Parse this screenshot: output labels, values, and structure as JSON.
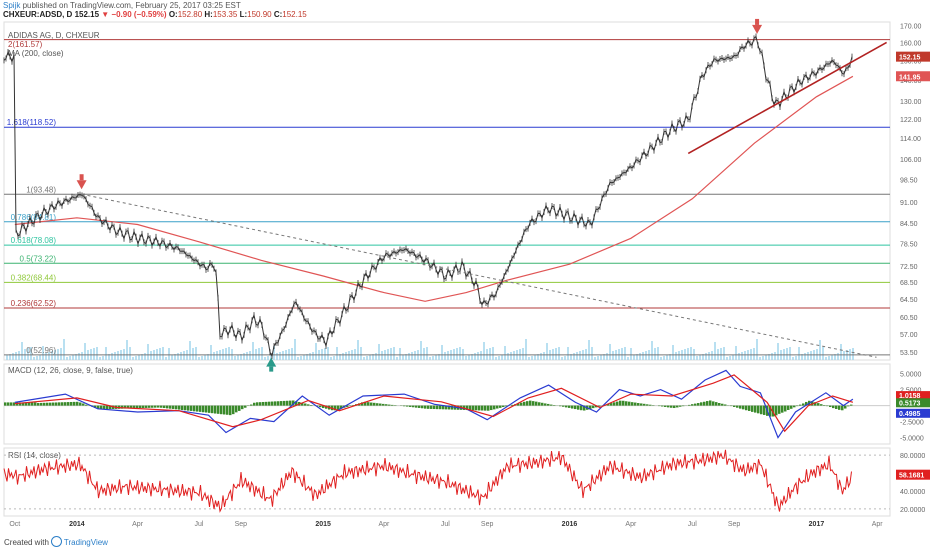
{
  "header": {
    "user": "Spijk",
    "published": " published on TradingView.com, February 25, 2017 03:25 EST",
    "symbol": "CHXEUR:ADSD, D",
    "last": "152.15",
    "change": "▼ −0.90 (−0.59%)",
    "ohlc": {
      "o_label": "O:",
      "o": "152.80",
      "h_label": "H:",
      "h": "153.35",
      "l_label": "L:",
      "l": "150.90",
      "c_label": "C:",
      "c": "152.15"
    }
  },
  "legends": {
    "main_title": "ADIDAS AG, D, CHXEUR",
    "main_sub": "2(161.57)",
    "ma": "MA (200, close)",
    "macd": "MACD (12, 26, close, 9, false, true)",
    "rsi": "RSI (14, close)"
  },
  "footer": {
    "created": "Created with",
    "brand": "TradingView"
  },
  "colors": {
    "candle": "#333333",
    "ma": "#e05555",
    "fib_1618": "#2a3bd1",
    "fib_0": "#777777",
    "fib_1": "#777777",
    "fib_0786": "#3aa0c8",
    "fib_0618": "#2ec4a0",
    "fib_05": "#3cb371",
    "fib_0382": "#8fc83a",
    "fib_0236": "#b03a3a",
    "fib_2": "#b03a3a",
    "trend": "#b22222",
    "arrow_down": "#d9534f",
    "arrow_up": "#2a9a8a",
    "volume": "#a8d8ee",
    "macd_line": "#2a3bd1",
    "signal_line": "#e02020",
    "hist_pos": "#3a8a2a",
    "hist_neg": "#3a8a2a",
    "rsi_line": "#e02020"
  },
  "chart_data": {
    "type": "line",
    "x_ticks": [
      "Oct",
      "2014",
      "Apr",
      "Jul",
      "Sep",
      "2015",
      "Apr",
      "Jul",
      "Sep",
      "2016",
      "Apr",
      "Jul",
      "Sep",
      "2017",
      "Apr"
    ],
    "y_ticks": [
      "170.00",
      "160.00",
      "150.00",
      "140.00",
      "130.00",
      "122.00",
      "114.00",
      "106.00",
      "98.50",
      "91.00",
      "84.50",
      "78.50",
      "72.50",
      "68.50",
      "64.50",
      "60.50",
      "57.00",
      "53.50"
    ],
    "price_labels": {
      "last": "152.15",
      "ma": "141.95"
    },
    "fib_levels": [
      {
        "label": "2(161.57)",
        "value": 161.57,
        "color_key": "fib_2"
      },
      {
        "label": "1.618(118.52)",
        "value": 118.52,
        "color_key": "fib_1618"
      },
      {
        "label": "1(93.48)",
        "value": 93.48,
        "color_key": "fib_1"
      },
      {
        "label": "0.786(84.81)",
        "value": 84.81,
        "color_key": "fib_0786"
      },
      {
        "label": "0.618(78.08)",
        "value": 78.08,
        "color_key": "fib_0618"
      },
      {
        "label": "0.5(73.22)",
        "value": 73.22,
        "color_key": "fib_05"
      },
      {
        "label": "0.382(68.44)",
        "value": 68.44,
        "color_key": "fib_0382"
      },
      {
        "label": "0.236(62.52)",
        "value": 62.52,
        "color_key": "fib_0236"
      },
      {
        "label": "0(52.96)",
        "value": 52.96,
        "color_key": "fib_0"
      }
    ],
    "price_series": [
      [
        "2013-10-01",
        81
      ],
      [
        "2013-11-01",
        86
      ],
      [
        "2013-12-01",
        90
      ],
      [
        "2014-01-08",
        93.5
      ],
      [
        "2014-02-01",
        86
      ],
      [
        "2014-03-01",
        82
      ],
      [
        "2014-04-01",
        80
      ],
      [
        "2014-05-01",
        79
      ],
      [
        "2014-06-01",
        77
      ],
      [
        "2014-07-10",
        72
      ],
      [
        "2014-07-25",
        73
      ],
      [
        "2014-08-01",
        57
      ],
      [
        "2014-08-15",
        58
      ],
      [
        "2014-09-01",
        56.5
      ],
      [
        "2014-09-20",
        60
      ],
      [
        "2014-10-01",
        59
      ],
      [
        "2014-10-16",
        53
      ],
      [
        "2014-11-01",
        57.5
      ],
      [
        "2014-11-20",
        64
      ],
      [
        "2014-12-05",
        60
      ],
      [
        "2014-12-20",
        57
      ],
      [
        "2015-01-05",
        55.5
      ],
      [
        "2015-02-01",
        62
      ],
      [
        "2015-03-01",
        69
      ],
      [
        "2015-04-01",
        75
      ],
      [
        "2015-05-01",
        77
      ],
      [
        "2015-06-01",
        74
      ],
      [
        "2015-07-01",
        70
      ],
      [
        "2015-07-25",
        72.5
      ],
      [
        "2015-08-15",
        68
      ],
      [
        "2015-08-25",
        63
      ],
      [
        "2015-09-15",
        66
      ],
      [
        "2015-10-01",
        72
      ],
      [
        "2015-11-01",
        84
      ],
      [
        "2015-12-01",
        89
      ],
      [
        "2016-01-05",
        86
      ],
      [
        "2016-02-01",
        84
      ],
      [
        "2016-03-01",
        97
      ],
      [
        "2016-04-01",
        103
      ],
      [
        "2016-05-01",
        110
      ],
      [
        "2016-06-01",
        118
      ],
      [
        "2016-06-25",
        122
      ],
      [
        "2016-07-15",
        142
      ],
      [
        "2016-08-01",
        150
      ],
      [
        "2016-09-01",
        152
      ],
      [
        "2016-09-15",
        158
      ],
      [
        "2016-10-05",
        162
      ],
      [
        "2016-10-20",
        140
      ],
      [
        "2016-11-01",
        128
      ],
      [
        "2016-11-20",
        134
      ],
      [
        "2016-12-10",
        140
      ],
      [
        "2017-01-01",
        144
      ],
      [
        "2017-01-25",
        150
      ],
      [
        "2017-02-10",
        143
      ],
      [
        "2017-02-24",
        152.15
      ]
    ],
    "ma_series": [
      [
        "2013-10-01",
        84
      ],
      [
        "2014-01-01",
        86
      ],
      [
        "2014-04-01",
        84
      ],
      [
        "2014-07-01",
        79
      ],
      [
        "2014-10-01",
        74
      ],
      [
        "2015-01-01",
        70
      ],
      [
        "2015-04-01",
        66
      ],
      [
        "2015-06-01",
        64
      ],
      [
        "2015-08-01",
        66
      ],
      [
        "2015-10-01",
        69
      ],
      [
        "2016-01-01",
        73
      ],
      [
        "2016-04-01",
        80
      ],
      [
        "2016-07-01",
        92
      ],
      [
        "2016-10-01",
        112
      ],
      [
        "2017-01-01",
        132
      ],
      [
        "2017-02-24",
        141.95
      ]
    ],
    "trendlines": [
      {
        "from": [
          "2014-01-08",
          93.5
        ],
        "to": [
          "2017-03-31",
          52.5
        ],
        "style": "dashed",
        "color_key": "fib_0"
      },
      {
        "from": [
          "2016-06-25",
          108
        ],
        "to": [
          "2017-04-15",
          160
        ],
        "style": "solid",
        "color_key": "trend"
      }
    ],
    "arrows": [
      {
        "dir": "down",
        "at": [
          "2014-01-08",
          93.5
        ]
      },
      {
        "dir": "down",
        "at": [
          "2016-10-05",
          162
        ]
      },
      {
        "dir": "up",
        "at": [
          "2014-10-16",
          53
        ]
      }
    ],
    "macd": {
      "y_ticks": [
        "5.0000",
        "2.5000",
        "-2.5000",
        "-5.0000"
      ],
      "labels": [
        "1.0158",
        "0.5173",
        "0.4985"
      ],
      "macd_series": [
        [
          "2013-10-01",
          0.5
        ],
        [
          "2013-12-15",
          1.8
        ],
        [
          "2014-02-01",
          -0.5
        ],
        [
          "2014-04-01",
          -1
        ],
        [
          "2014-06-01",
          -0.8
        ],
        [
          "2014-07-15",
          -1.5
        ],
        [
          "2014-08-10",
          -4.2
        ],
        [
          "2014-09-15",
          -2
        ],
        [
          "2014-10-20",
          -2.5
        ],
        [
          "2014-12-01",
          1.5
        ],
        [
          "2015-01-10",
          -1.5
        ],
        [
          "2015-03-01",
          1.5
        ],
        [
          "2015-05-01",
          1.8
        ],
        [
          "2015-06-15",
          0.2
        ],
        [
          "2015-08-01",
          -0.5
        ],
        [
          "2015-09-01",
          -2.2
        ],
        [
          "2015-10-20",
          1.2
        ],
        [
          "2015-12-01",
          3.2
        ],
        [
          "2016-01-10",
          0.5
        ],
        [
          "2016-02-10",
          -1
        ],
        [
          "2016-03-15",
          2.5
        ],
        [
          "2016-04-15",
          1.5
        ],
        [
          "2016-05-15",
          2.5
        ],
        [
          "2016-06-15",
          1
        ],
        [
          "2016-07-20",
          4
        ],
        [
          "2016-08-20",
          5.5
        ],
        [
          "2016-09-10",
          3
        ],
        [
          "2016-10-10",
          2
        ],
        [
          "2016-11-05",
          -5
        ],
        [
          "2016-12-01",
          -1
        ],
        [
          "2017-01-15",
          2
        ],
        [
          "2017-02-10",
          0
        ],
        [
          "2017-02-24",
          1.0158
        ]
      ],
      "signal_series": [
        [
          "2013-10-01",
          0.3
        ],
        [
          "2014-01-01",
          1.2
        ],
        [
          "2014-03-01",
          -0.3
        ],
        [
          "2014-06-01",
          -0.8
        ],
        [
          "2014-08-20",
          -3.3
        ],
        [
          "2014-10-01",
          -2.2
        ],
        [
          "2014-12-10",
          0.8
        ],
        [
          "2015-01-25",
          -0.8
        ],
        [
          "2015-04-01",
          1.5
        ],
        [
          "2015-06-25",
          0.6
        ],
        [
          "2015-09-10",
          -1.7
        ],
        [
          "2015-11-01",
          1.2
        ],
        [
          "2015-12-20",
          2.7
        ],
        [
          "2016-02-15",
          -0.3
        ],
        [
          "2016-04-01",
          1.8
        ],
        [
          "2016-06-01",
          1.5
        ],
        [
          "2016-08-01",
          3.5
        ],
        [
          "2016-09-01",
          4.8
        ],
        [
          "2016-10-20",
          0.5
        ],
        [
          "2016-11-15",
          -4
        ],
        [
          "2016-12-20",
          0
        ],
        [
          "2017-01-25",
          1.5
        ],
        [
          "2017-02-24",
          0.5173
        ]
      ],
      "hist_series": [
        [
          "2013-11-01",
          0.4
        ],
        [
          "2014-01-01",
          0.6
        ],
        [
          "2014-02-01",
          -0.6
        ],
        [
          "2014-05-01",
          -0.3
        ],
        [
          "2014-08-15",
          -1.5
        ],
        [
          "2014-09-20",
          0.5
        ],
        [
          "2014-11-15",
          0.8
        ],
        [
          "2015-01-15",
          -0.8
        ],
        [
          "2015-03-01",
          0.6
        ],
        [
          "2015-06-01",
          -0.5
        ],
        [
          "2015-09-01",
          -0.8
        ],
        [
          "2015-11-01",
          0.8
        ],
        [
          "2016-01-20",
          -0.8
        ],
        [
          "2016-03-15",
          0.8
        ],
        [
          "2016-06-01",
          -0.4
        ],
        [
          "2016-07-25",
          0.8
        ],
        [
          "2016-10-25",
          -1.8
        ],
        [
          "2016-12-20",
          0.8
        ],
        [
          "2017-02-05",
          -0.8
        ],
        [
          "2017-02-24",
          0.4985
        ]
      ]
    },
    "rsi": {
      "y_ticks": [
        "80.0000",
        "60.0000",
        "40.0000",
        "20.0000"
      ],
      "label": "58.1681",
      "series": [
        [
          "2013-10-01",
          55
        ],
        [
          "2013-11-15",
          65
        ],
        [
          "2014-01-05",
          70
        ],
        [
          "2014-02-01",
          40
        ],
        [
          "2014-03-15",
          45
        ],
        [
          "2014-05-01",
          42
        ],
        [
          "2014-07-01",
          38
        ],
        [
          "2014-08-01",
          22
        ],
        [
          "2014-09-01",
          52
        ],
        [
          "2014-10-15",
          30
        ],
        [
          "2014-11-15",
          62
        ],
        [
          "2014-12-20",
          35
        ],
        [
          "2015-02-01",
          60
        ],
        [
          "2015-04-01",
          68
        ],
        [
          "2015-05-15",
          58
        ],
        [
          "2015-07-01",
          50
        ],
        [
          "2015-08-25",
          32
        ],
        [
          "2015-10-01",
          68
        ],
        [
          "2015-11-15",
          72
        ],
        [
          "2015-12-20",
          78
        ],
        [
          "2016-01-20",
          40
        ],
        [
          "2016-03-01",
          68
        ],
        [
          "2016-04-15",
          55
        ],
        [
          "2016-06-01",
          70
        ],
        [
          "2016-07-20",
          75
        ],
        [
          "2016-08-15",
          80
        ],
        [
          "2016-09-15",
          62
        ],
        [
          "2016-10-10",
          70
        ],
        [
          "2016-11-05",
          22
        ],
        [
          "2016-12-01",
          45
        ],
        [
          "2016-12-25",
          60
        ],
        [
          "2017-01-20",
          70
        ],
        [
          "2017-02-08",
          40
        ],
        [
          "2017-02-24",
          58.1681
        ]
      ]
    }
  }
}
